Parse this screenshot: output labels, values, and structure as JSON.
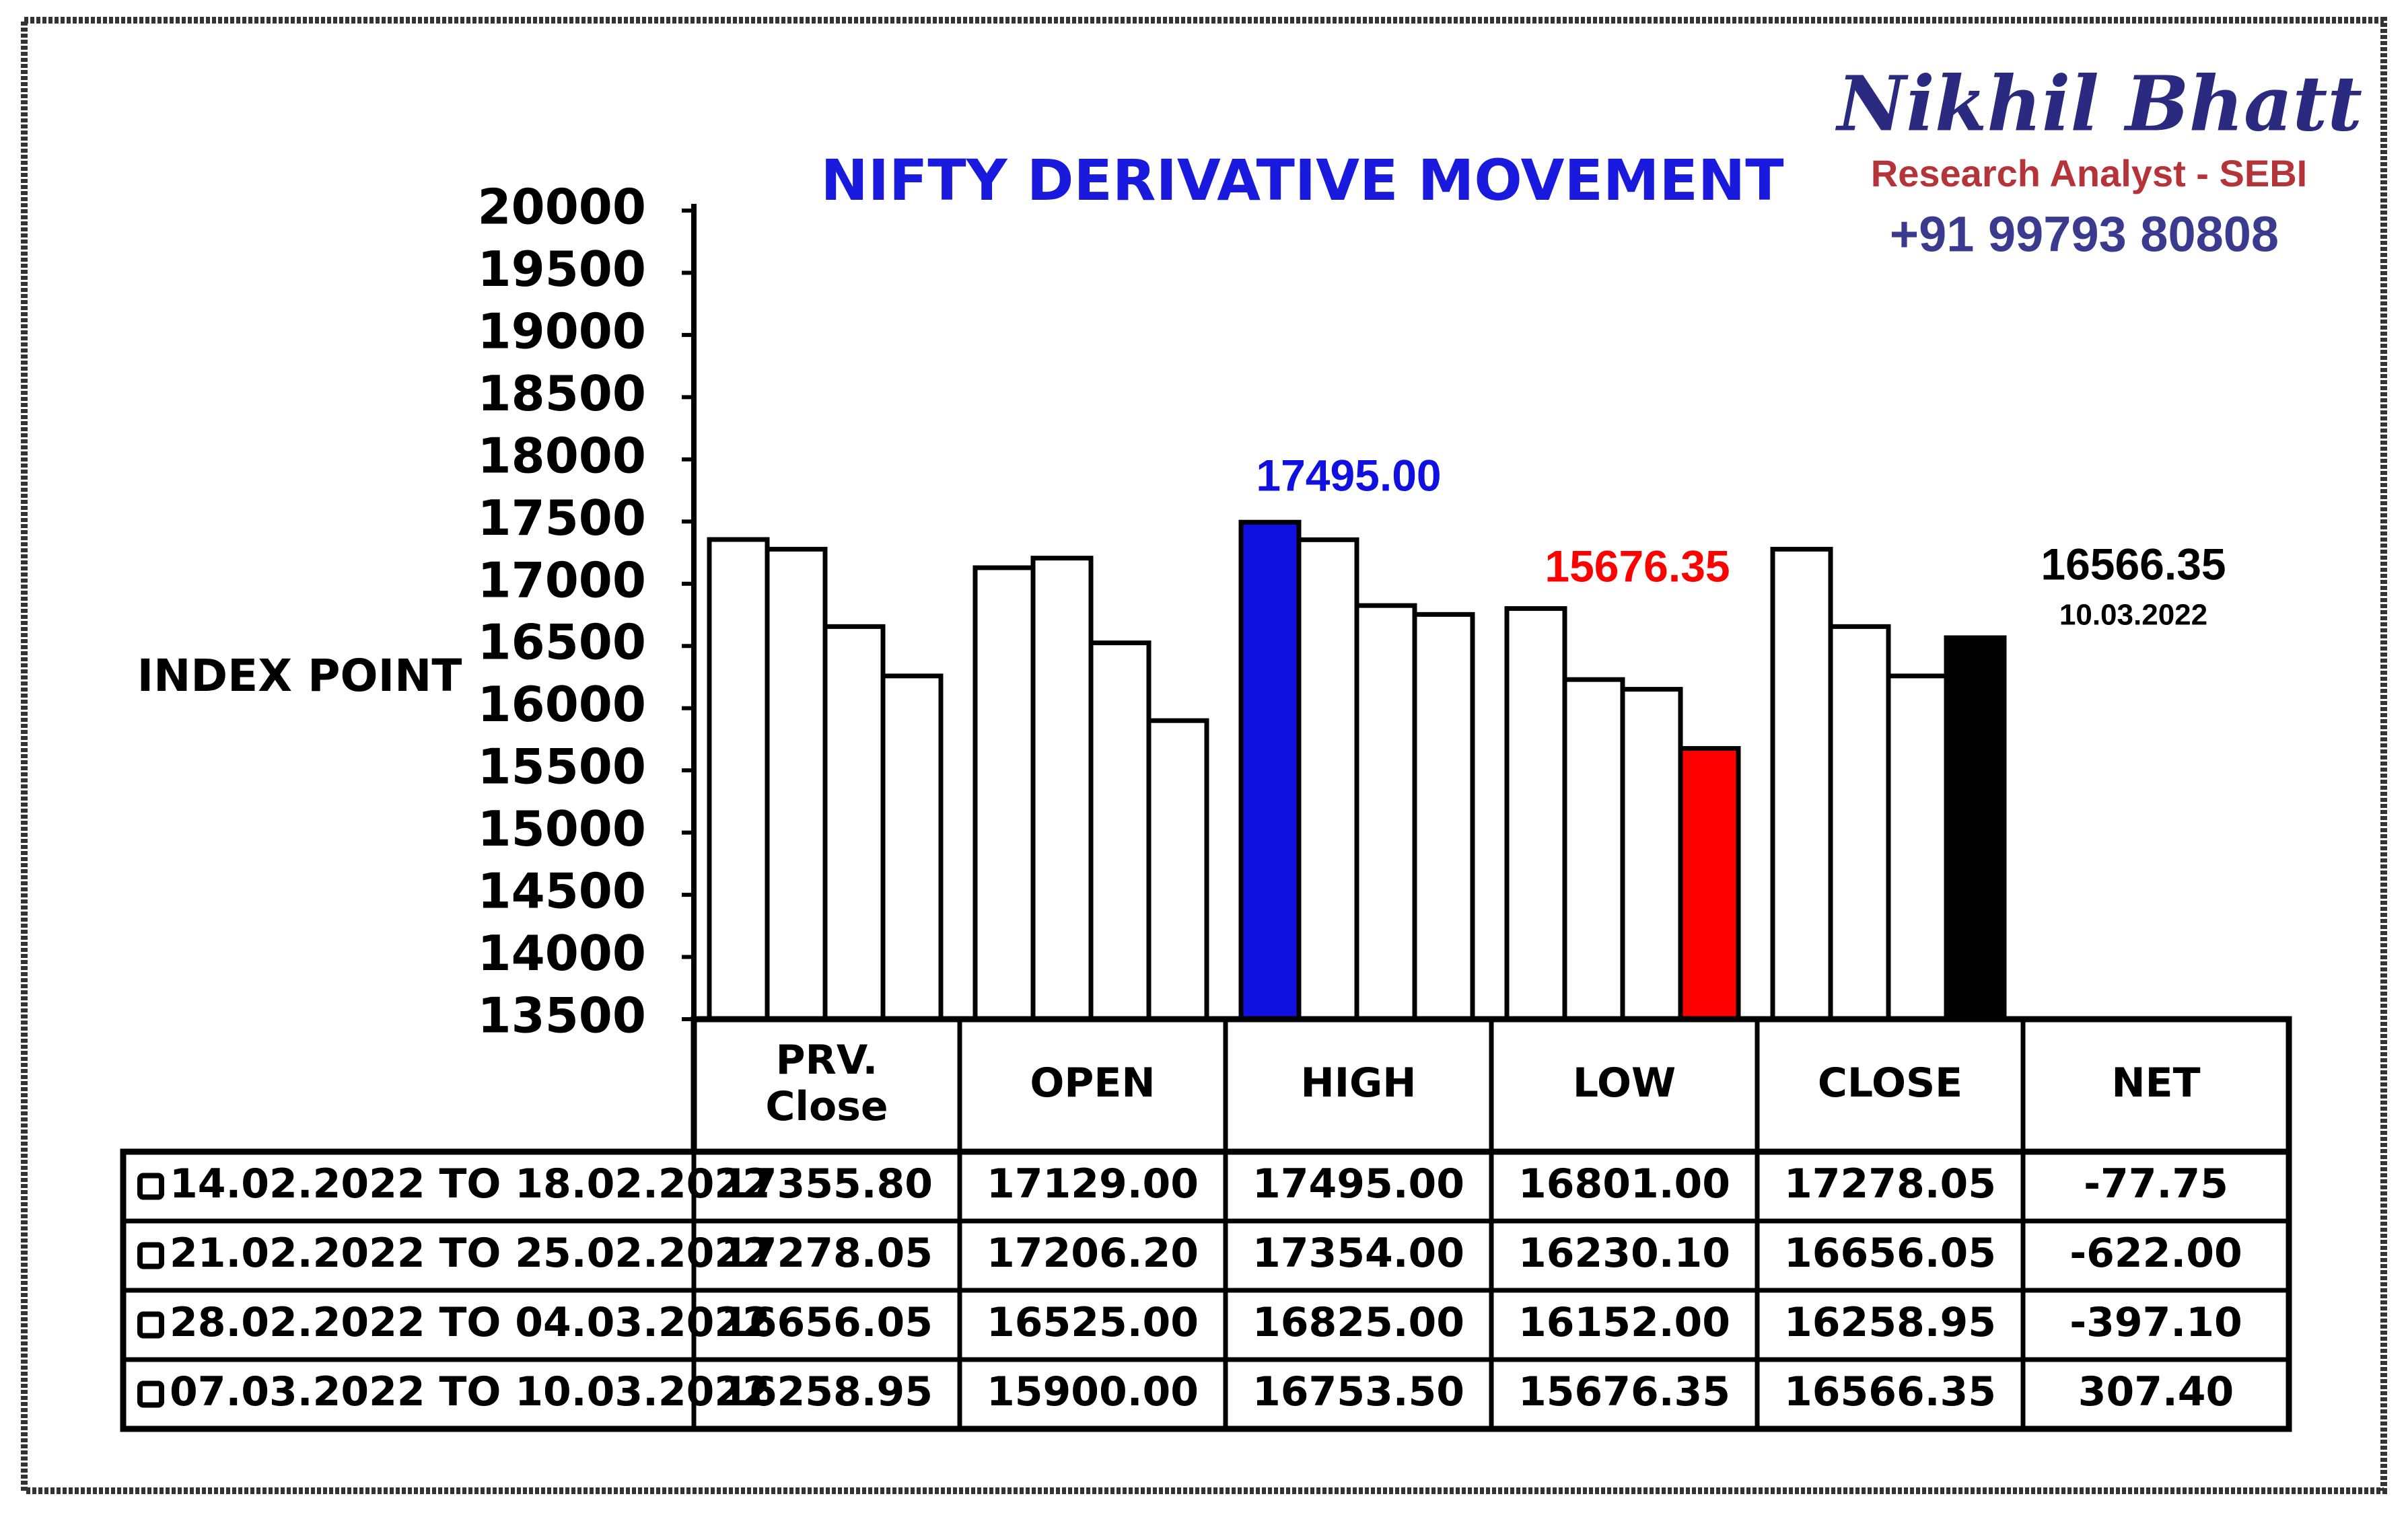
{
  "chart_data": {
    "type": "bar",
    "title": "NIFTY DERIVATIVE MOVEMENT",
    "y_label": "INDEX POINT",
    "brand": {
      "name": "Nikhil Bhatt",
      "role": "Research Analyst - SEBI",
      "phone": "+91 99793 80808"
    },
    "categories": [
      "PRV.\nClose",
      "OPEN",
      "HIGH",
      "LOW",
      "CLOSE"
    ],
    "net_header": "NET",
    "ylim": [
      13500,
      20000
    ],
    "yticks": [
      13500,
      14000,
      14500,
      15000,
      15500,
      16000,
      16500,
      17000,
      17500,
      18000,
      18500,
      19000,
      19500,
      20000
    ],
    "series": [
      {
        "name": "14.02.2022 TO 18.02.2022",
        "colors": [
          "#ffffff",
          "#ffffff",
          "#1010e0",
          "#ffffff",
          "#ffffff"
        ],
        "values": [
          17355.8,
          17129,
          17495,
          16801,
          17278.05
        ],
        "value_labels": [
          "17355.80",
          "17129.00",
          "17495.00",
          "16801.00",
          "17278.05"
        ],
        "net": -77.75,
        "net_label": "-77.75"
      },
      {
        "name": "21.02.2022 TO 25.02.2022",
        "colors": [
          "#ffffff",
          "#ffffff",
          "#ffffff",
          "#ffffff",
          "#ffffff"
        ],
        "values": [
          17278.05,
          17206.2,
          17354,
          16230.1,
          16656.05
        ],
        "value_labels": [
          "17278.05",
          "17206.20",
          "17354.00",
          "16230.10",
          "16656.05"
        ],
        "net": -622,
        "net_label": "-622.00"
      },
      {
        "name": "28.02.2022 TO 04.03.2022",
        "colors": [
          "#ffffff",
          "#ffffff",
          "#ffffff",
          "#ffffff",
          "#ffffff"
        ],
        "values": [
          16656.05,
          16525,
          16825,
          16152,
          16258.95
        ],
        "value_labels": [
          "16656.05",
          "16525.00",
          "16825.00",
          "16152.00",
          "16258.95"
        ],
        "net": -397.1,
        "net_label": "-397.10"
      },
      {
        "name": "07.03.2022 TO 10.03.2022",
        "colors": [
          "#ffffff",
          "#ffffff",
          "#ffffff",
          "#ff0000",
          "#000000"
        ],
        "values": [
          16258.95,
          15900,
          16753.5,
          15676.35,
          16566.35
        ],
        "value_labels": [
          "16258.95",
          "15900.00",
          "16753.50",
          "15676.35",
          "16566.35"
        ],
        "net": 307.4,
        "net_label": "307.40"
      }
    ],
    "annotations": [
      {
        "text": "17495.00",
        "color": "#1010e0"
      },
      {
        "text": "15676.35",
        "color": "#ff0000"
      },
      {
        "text": "16566.35",
        "color": "#000000"
      },
      {
        "text": "10.03.2022",
        "color": "#000000"
      }
    ]
  }
}
